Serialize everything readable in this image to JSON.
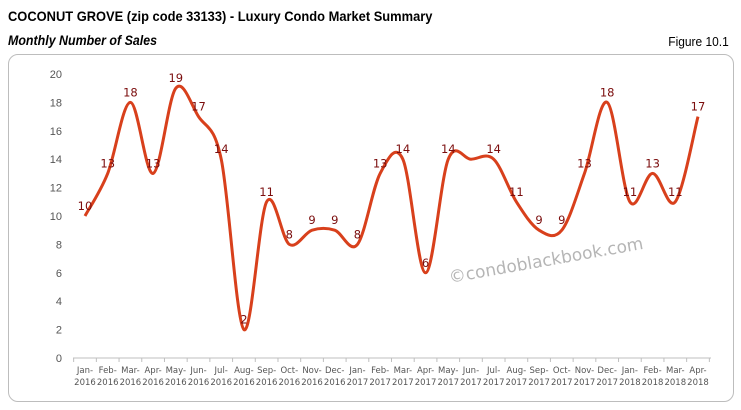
{
  "header": {
    "title": "COCONUT GROVE (zip code 33133) - Luxury Condo Market Summary",
    "subtitle": "Monthly Number of Sales",
    "figure": "Figure 10.1"
  },
  "watermark": "©condoblackbook.com",
  "chart_data": {
    "type": "line",
    "title": "",
    "xlabel": "",
    "ylabel": "",
    "categories": [
      "Jan-2016",
      "Feb-2016",
      "Mar-2016",
      "Apr-2016",
      "May-2016",
      "Jun-2016",
      "Jul-2016",
      "Aug-2016",
      "Sep-2016",
      "Oct-2016",
      "Nov-2016",
      "Dec-2016",
      "Jan-2017",
      "Feb-2017",
      "Mar-2017",
      "Apr-2017",
      "May-2017",
      "Jun-2017",
      "Jul-2017",
      "Aug-2017",
      "Sep-2017",
      "Oct-2017",
      "Nov-2017",
      "Dec-2017",
      "Jan-2018",
      "Feb-2018",
      "Mar-2018",
      "Apr-2018"
    ],
    "values": [
      10,
      13,
      18,
      13,
      19,
      17,
      14,
      2,
      11,
      8,
      9,
      9,
      8,
      13,
      14,
      6,
      14,
      14,
      14,
      11,
      9,
      9,
      13,
      18,
      11,
      13,
      11,
      17
    ],
    "data_labels": [
      "10",
      "13",
      "18",
      "13",
      "19",
      "17",
      "14",
      "2",
      "11",
      "8",
      "9",
      "9",
      "8",
      "13",
      "14",
      "6",
      "14",
      "",
      "14",
      "11",
      "9",
      "9",
      "13",
      "18",
      "11",
      "13",
      "11",
      "17"
    ],
    "ylim": [
      0,
      20
    ],
    "yticks": [
      0,
      2,
      4,
      6,
      8,
      10,
      12,
      14,
      16,
      18,
      20
    ],
    "grid": false,
    "smooth": true,
    "colors": {
      "line": "#d8401c",
      "label": "#7b0d0d"
    }
  }
}
